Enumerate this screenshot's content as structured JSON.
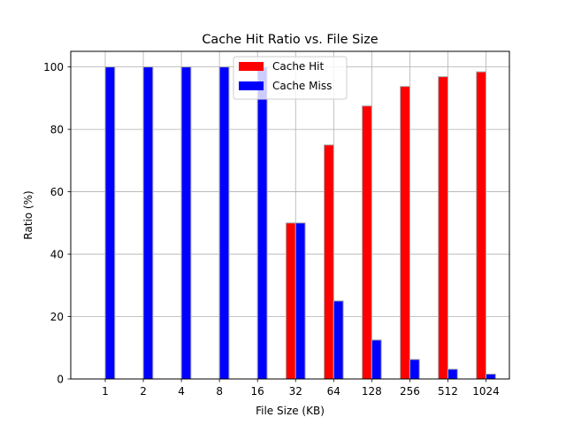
{
  "chart_data": {
    "type": "bar",
    "title": "Cache Hit Ratio vs. File Size",
    "xlabel": "File Size (KB)",
    "ylabel": "Ratio (%)",
    "categories": [
      "1",
      "2",
      "4",
      "8",
      "16",
      "32",
      "64",
      "128",
      "256",
      "512",
      "1024"
    ],
    "series": [
      {
        "name": "Cache Hit",
        "color": "#ff0000",
        "values": [
          0,
          0,
          0,
          0,
          0,
          50,
          75,
          87.5,
          93.75,
          96.875,
          98.4375
        ]
      },
      {
        "name": "Cache Miss",
        "color": "#0000ff",
        "values": [
          100,
          100,
          100,
          100,
          100,
          50,
          25,
          12.5,
          6.25,
          3.125,
          1.5625
        ]
      }
    ],
    "ylim": [
      0,
      105
    ],
    "yticks": [
      "0",
      "20",
      "40",
      "60",
      "80",
      "100"
    ],
    "grid": true,
    "legend_position": "upper-center",
    "bar_edge_color": "#aaaaaa"
  }
}
